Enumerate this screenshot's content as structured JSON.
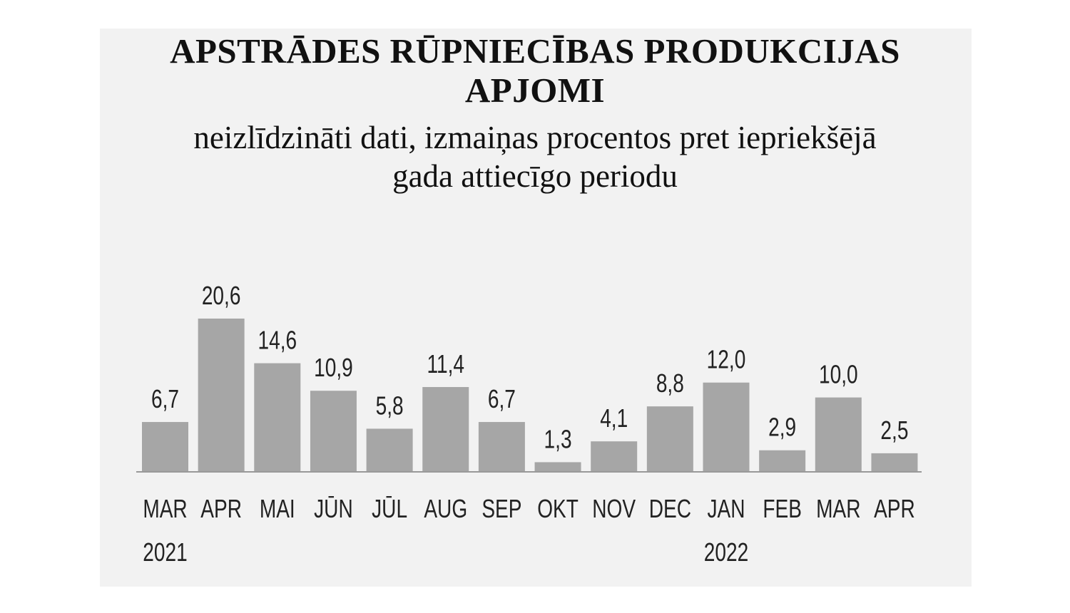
{
  "chart_data": {
    "type": "bar",
    "title_line1": "APSTRĀDES RŪPNIECĪBAS PRODUKCIJAS",
    "title_line2": "APJOMI",
    "subtitle_line1": "neizlīdzināti dati, izmaiņas procentos pret iepriekšējā",
    "subtitle_line2": "gada attiecīgo periodu",
    "categories": [
      "MAR",
      "APR",
      "MAI",
      "JŪN",
      "JŪL",
      "AUG",
      "SEP",
      "OKT",
      "NOV",
      "DEC",
      "JAN",
      "FEB",
      "MAR",
      "APR"
    ],
    "year_labels": [
      {
        "category_index": 0,
        "label": "2021"
      },
      {
        "category_index": 10,
        "label": "2022"
      }
    ],
    "values": [
      6.7,
      20.6,
      14.6,
      10.9,
      5.8,
      11.4,
      6.7,
      1.3,
      4.1,
      8.8,
      12.0,
      2.9,
      10.0,
      2.5
    ],
    "value_labels": [
      "6,7",
      "20,6",
      "14,6",
      "10,9",
      "5,8",
      "11,4",
      "6,7",
      "1,3",
      "4,1",
      "8,8",
      "12,0",
      "2,9",
      "10,0",
      "2,5"
    ],
    "bar_color": "#a6a6a6",
    "axis_color": "#999999",
    "background_color": "#f2f2f2",
    "grid": false,
    "ylim": [
      0,
      20.6
    ]
  }
}
